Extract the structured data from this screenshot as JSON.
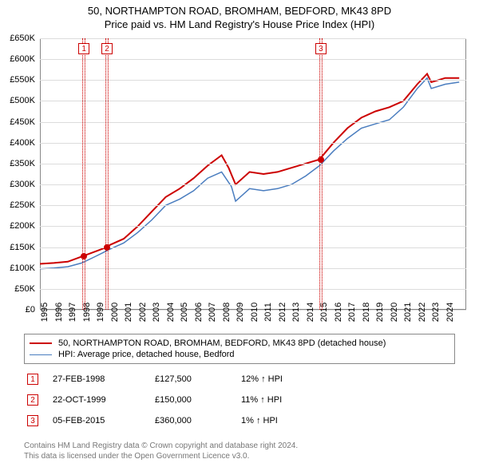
{
  "title": {
    "line1": "50, NORTHAMPTON ROAD, BROMHAM, BEDFORD, MK43 8PD",
    "line2": "Price paid vs. HM Land Registry's House Price Index (HPI)"
  },
  "chart": {
    "type": "line",
    "background_color": "#ffffff",
    "grid_color": "#dcdcdc",
    "border_color": "#888888",
    "ylim": [
      0,
      650000
    ],
    "ytick_step": 50000,
    "ytick_labels": [
      "£0",
      "£50K",
      "£100K",
      "£150K",
      "£200K",
      "£250K",
      "£300K",
      "£350K",
      "£400K",
      "£450K",
      "£500K",
      "£550K",
      "£600K",
      "£650K"
    ],
    "xlim": [
      1995,
      2025.5
    ],
    "xtick_years": [
      1995,
      1996,
      1997,
      1998,
      1999,
      2000,
      2001,
      2002,
      2003,
      2004,
      2005,
      2006,
      2007,
      2008,
      2009,
      2010,
      2011,
      2012,
      2013,
      2014,
      2015,
      2016,
      2017,
      2018,
      2019,
      2020,
      2021,
      2022,
      2023,
      2024
    ],
    "series": [
      {
        "name": "property",
        "color": "#cc0000",
        "width": 2,
        "points": [
          [
            1995,
            110000
          ],
          [
            1996,
            112000
          ],
          [
            1997,
            115000
          ],
          [
            1998,
            127500
          ],
          [
            1999,
            140000
          ],
          [
            1999.8,
            150000
          ],
          [
            2000,
            155000
          ],
          [
            2001,
            170000
          ],
          [
            2002,
            200000
          ],
          [
            2003,
            235000
          ],
          [
            2004,
            270000
          ],
          [
            2005,
            290000
          ],
          [
            2006,
            315000
          ],
          [
            2007,
            345000
          ],
          [
            2008,
            370000
          ],
          [
            2008.5,
            340000
          ],
          [
            2009,
            300000
          ],
          [
            2010,
            330000
          ],
          [
            2011,
            325000
          ],
          [
            2012,
            330000
          ],
          [
            2013,
            340000
          ],
          [
            2014,
            350000
          ],
          [
            2015,
            360000
          ],
          [
            2016,
            400000
          ],
          [
            2017,
            435000
          ],
          [
            2018,
            460000
          ],
          [
            2019,
            475000
          ],
          [
            2020,
            485000
          ],
          [
            2021,
            500000
          ],
          [
            2022,
            540000
          ],
          [
            2022.7,
            565000
          ],
          [
            2023,
            545000
          ],
          [
            2024,
            555000
          ],
          [
            2025,
            555000
          ]
        ]
      },
      {
        "name": "hpi",
        "color": "#4a7dbf",
        "width": 1.5,
        "points": [
          [
            1995,
            98000
          ],
          [
            1996,
            100000
          ],
          [
            1997,
            103000
          ],
          [
            1998,
            112000
          ],
          [
            1999,
            128000
          ],
          [
            2000,
            145000
          ],
          [
            2001,
            160000
          ],
          [
            2002,
            185000
          ],
          [
            2003,
            215000
          ],
          [
            2004,
            250000
          ],
          [
            2005,
            265000
          ],
          [
            2006,
            285000
          ],
          [
            2007,
            315000
          ],
          [
            2008,
            330000
          ],
          [
            2008.7,
            295000
          ],
          [
            2009,
            260000
          ],
          [
            2010,
            290000
          ],
          [
            2011,
            285000
          ],
          [
            2012,
            290000
          ],
          [
            2013,
            300000
          ],
          [
            2014,
            320000
          ],
          [
            2015,
            345000
          ],
          [
            2016,
            380000
          ],
          [
            2017,
            410000
          ],
          [
            2018,
            435000
          ],
          [
            2019,
            445000
          ],
          [
            2020,
            455000
          ],
          [
            2021,
            485000
          ],
          [
            2022,
            530000
          ],
          [
            2022.7,
            555000
          ],
          [
            2023,
            530000
          ],
          [
            2024,
            540000
          ],
          [
            2025,
            545000
          ]
        ]
      }
    ],
    "marker_bands": [
      {
        "id": 1,
        "x": 1998.15,
        "width_years": 0.25
      },
      {
        "id": 2,
        "x": 1999.8,
        "width_years": 0.25
      },
      {
        "id": 3,
        "x": 2015.1,
        "width_years": 0.25
      }
    ],
    "sale_points": [
      {
        "x": 1998.15,
        "y": 127500,
        "color": "#cc0000"
      },
      {
        "x": 1999.8,
        "y": 150000,
        "color": "#cc0000"
      },
      {
        "x": 2015.1,
        "y": 360000,
        "color": "#cc0000"
      }
    ]
  },
  "legend": {
    "items": [
      {
        "color": "#cc0000",
        "label": "50, NORTHAMPTON ROAD, BROMHAM, BEDFORD, MK43 8PD (detached house)"
      },
      {
        "color": "#4a7dbf",
        "label": "HPI: Average price, detached house, Bedford"
      }
    ]
  },
  "events": [
    {
      "n": "1",
      "date": "27-FEB-1998",
      "price": "£127,500",
      "diff": "12% ↑ HPI"
    },
    {
      "n": "2",
      "date": "22-OCT-1999",
      "price": "£150,000",
      "diff": "11% ↑ HPI"
    },
    {
      "n": "3",
      "date": "05-FEB-2015",
      "price": "£360,000",
      "diff": "1% ↑ HPI"
    }
  ],
  "footer": {
    "line1": "Contains HM Land Registry data © Crown copyright and database right 2024.",
    "line2": "This data is licensed under the Open Government Licence v3.0."
  }
}
